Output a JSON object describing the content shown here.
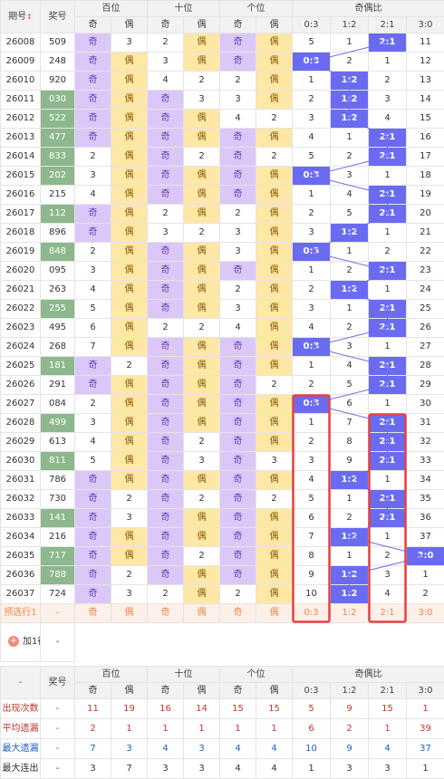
{
  "header": {
    "issue_col": "期号",
    "sort_mark": "↕",
    "prize_col": "奖号",
    "groups": [
      "百位",
      "十位",
      "个位",
      "奇偶比"
    ],
    "odd": "奇",
    "even": "偶",
    "ratios": [
      "0:3",
      "1:2",
      "2:1",
      "3:0"
    ]
  },
  "rows": [
    {
      "issue": "26008",
      "num": "509",
      "green": false,
      "h": [
        1,
        3
      ],
      "t": [
        2,
        1
      ],
      "u": [
        1,
        1
      ],
      "r": [
        5,
        1,
        "2:1",
        11
      ],
      "blue": 2
    },
    {
      "issue": "26009",
      "num": "248",
      "green": false,
      "h": [
        1,
        1
      ],
      "t": [
        3,
        1
      ],
      "u": [
        1,
        1
      ],
      "r": [
        "0:3",
        2,
        1,
        12
      ],
      "blue": 0
    },
    {
      "issue": "26010",
      "num": "920",
      "green": false,
      "h": [
        1,
        1
      ],
      "t": [
        4,
        2
      ],
      "u": [
        2,
        1
      ],
      "r": [
        1,
        "1:2",
        2,
        13
      ],
      "blue": 1
    },
    {
      "issue": "26011",
      "num": "030",
      "green": true,
      "h": [
        1,
        1
      ],
      "t": [
        1,
        3
      ],
      "u": [
        3,
        1
      ],
      "r": [
        2,
        "1:2",
        3,
        14
      ],
      "blue": 1
    },
    {
      "issue": "26012",
      "num": "522",
      "green": true,
      "h": [
        1,
        1
      ],
      "t": [
        1,
        1
      ],
      "u": [
        4,
        2
      ],
      "r": [
        3,
        "1:2",
        4,
        15
      ],
      "blue": 1
    },
    {
      "issue": "26013",
      "num": "477",
      "green": true,
      "h": [
        1,
        1
      ],
      "t": [
        1,
        1
      ],
      "u": [
        1,
        1
      ],
      "r": [
        4,
        1,
        "2:1",
        16
      ],
      "blue": 2
    },
    {
      "issue": "26014",
      "num": "833",
      "green": true,
      "h": [
        2,
        1
      ],
      "t": [
        1,
        2
      ],
      "u": [
        1,
        2
      ],
      "r": [
        5,
        2,
        "2:1",
        17
      ],
      "blue": 2
    },
    {
      "issue": "26015",
      "num": "202",
      "green": true,
      "h": [
        3,
        1
      ],
      "t": [
        1,
        1
      ],
      "u": [
        1,
        1
      ],
      "r": [
        "0:3",
        3,
        1,
        18
      ],
      "blue": 0
    },
    {
      "issue": "26016",
      "num": "215",
      "green": false,
      "h": [
        4,
        1
      ],
      "t": [
        1,
        1
      ],
      "u": [
        1,
        1
      ],
      "r": [
        1,
        4,
        "2:1",
        19
      ],
      "blue": 2
    },
    {
      "issue": "26017",
      "num": "112",
      "green": true,
      "h": [
        1,
        1
      ],
      "t": [
        2,
        1
      ],
      "u": [
        2,
        1
      ],
      "r": [
        2,
        5,
        "2:1",
        20
      ],
      "blue": 2
    },
    {
      "issue": "26018",
      "num": "896",
      "green": false,
      "h": [
        1,
        1
      ],
      "t": [
        3,
        2
      ],
      "u": [
        3,
        1
      ],
      "r": [
        3,
        "1:2",
        1,
        21
      ],
      "blue": 1
    },
    {
      "issue": "26019",
      "num": "848",
      "green": true,
      "h": [
        2,
        1
      ],
      "t": [
        1,
        1
      ],
      "u": [
        3,
        1
      ],
      "r": [
        "0:3",
        1,
        2,
        22
      ],
      "blue": 0
    },
    {
      "issue": "26020",
      "num": "095",
      "green": false,
      "h": [
        3,
        1
      ],
      "t": [
        1,
        1
      ],
      "u": [
        1,
        1
      ],
      "r": [
        1,
        2,
        "2:1",
        23
      ],
      "blue": 2
    },
    {
      "issue": "26021",
      "num": "263",
      "green": false,
      "h": [
        4,
        1
      ],
      "t": [
        1,
        1
      ],
      "u": [
        2,
        1
      ],
      "r": [
        2,
        "1:2",
        1,
        24
      ],
      "blue": 1
    },
    {
      "issue": "26022",
      "num": "255",
      "green": true,
      "h": [
        5,
        1
      ],
      "t": [
        1,
        1
      ],
      "u": [
        3,
        1
      ],
      "r": [
        3,
        1,
        "2:1",
        25
      ],
      "blue": 2
    },
    {
      "issue": "26023",
      "num": "495",
      "green": false,
      "h": [
        6,
        1
      ],
      "t": [
        2,
        2
      ],
      "u": [
        4,
        1
      ],
      "r": [
        4,
        2,
        "2:1",
        26
      ],
      "blue": 2
    },
    {
      "issue": "26024",
      "num": "268",
      "green": false,
      "h": [
        7,
        1
      ],
      "t": [
        1,
        1
      ],
      "u": [
        1,
        1
      ],
      "r": [
        "0:3",
        3,
        1,
        27
      ],
      "blue": 0
    },
    {
      "issue": "26025",
      "num": "181",
      "green": true,
      "h": [
        1,
        2
      ],
      "t": [
        1,
        1
      ],
      "u": [
        1,
        1
      ],
      "r": [
        1,
        4,
        "2:1",
        28
      ],
      "blue": 2
    },
    {
      "issue": "26026",
      "num": "291",
      "green": false,
      "h": [
        1,
        1
      ],
      "t": [
        1,
        1
      ],
      "u": [
        1,
        2
      ],
      "r": [
        2,
        5,
        "2:1",
        29
      ],
      "blue": 2
    },
    {
      "issue": "26027",
      "num": "084",
      "green": false,
      "h": [
        2,
        1
      ],
      "t": [
        1,
        1
      ],
      "u": [
        1,
        1
      ],
      "r": [
        "0:3",
        6,
        1,
        30
      ],
      "blue": 0
    },
    {
      "issue": "26028",
      "num": "499",
      "green": true,
      "h": [
        3,
        1
      ],
      "t": [
        1,
        1
      ],
      "u": [
        1,
        1
      ],
      "r": [
        1,
        7,
        "2:1",
        31
      ],
      "blue": 2
    },
    {
      "issue": "26029",
      "num": "613",
      "green": false,
      "h": [
        4,
        1
      ],
      "t": [
        1,
        2
      ],
      "u": [
        1,
        1
      ],
      "r": [
        2,
        8,
        "2:1",
        32
      ],
      "blue": 2
    },
    {
      "issue": "26030",
      "num": "811",
      "green": true,
      "h": [
        5,
        1
      ],
      "t": [
        1,
        3
      ],
      "u": [
        1,
        3
      ],
      "r": [
        3,
        9,
        "2:1",
        33
      ],
      "blue": 2
    },
    {
      "issue": "26031",
      "num": "786",
      "green": false,
      "h": [
        1,
        1
      ],
      "t": [
        1,
        1
      ],
      "u": [
        1,
        1
      ],
      "r": [
        4,
        "1:2",
        1,
        34
      ],
      "blue": 1
    },
    {
      "issue": "26032",
      "num": "730",
      "green": false,
      "h": [
        1,
        2
      ],
      "t": [
        1,
        2
      ],
      "u": [
        1,
        2
      ],
      "r": [
        5,
        1,
        "2:1",
        35
      ],
      "blue": 2
    },
    {
      "issue": "26033",
      "num": "141",
      "green": true,
      "h": [
        1,
        3
      ],
      "t": [
        1,
        1
      ],
      "u": [
        1,
        1
      ],
      "r": [
        6,
        2,
        "2:1",
        36
      ],
      "blue": 2
    },
    {
      "issue": "26034",
      "num": "216",
      "green": false,
      "h": [
        1,
        1
      ],
      "t": [
        1,
        1
      ],
      "u": [
        1,
        1
      ],
      "r": [
        7,
        "1:2",
        1,
        37
      ],
      "blue": 1
    },
    {
      "issue": "26035",
      "num": "717",
      "green": true,
      "h": [
        1,
        1
      ],
      "t": [
        1,
        2
      ],
      "u": [
        1,
        1
      ],
      "r": [
        8,
        1,
        2,
        "3:0"
      ],
      "blue": 3
    },
    {
      "issue": "26036",
      "num": "788",
      "green": true,
      "h": [
        1,
        2
      ],
      "t": [
        1,
        1
      ],
      "u": [
        1,
        1
      ],
      "r": [
        9,
        "1:2",
        3,
        1
      ],
      "blue": 1
    },
    {
      "issue": "26037",
      "num": "724",
      "green": false,
      "h": [
        1,
        3
      ],
      "t": [
        2,
        1
      ],
      "u": [
        2,
        1
      ],
      "r": [
        10,
        "1:2",
        4,
        2
      ],
      "blue": 1
    }
  ],
  "prediction": {
    "label": "预选行1",
    "dash": "-",
    "odd": "奇",
    "even": "偶",
    "ratios": [
      "0:3",
      "1:2",
      "2:1",
      "3:0"
    ]
  },
  "add_row": {
    "label": "加1行",
    "icon": "+",
    "dash": "-"
  },
  "stats_header": {
    "dash": "-",
    "prize_col": "奖号"
  },
  "stats": [
    {
      "label": "出现次数",
      "dash": "-",
      "values": [
        11,
        19,
        16,
        14,
        15,
        15,
        5,
        9,
        15,
        1
      ],
      "color": "st-r"
    },
    {
      "label": "平均遗漏",
      "dash": "-",
      "values": [
        2,
        1,
        1,
        1,
        1,
        1,
        6,
        2,
        1,
        39
      ],
      "color": "st-r"
    },
    {
      "label": "最大遗漏",
      "dash": "-",
      "values": [
        7,
        3,
        4,
        3,
        4,
        4,
        10,
        9,
        4,
        37
      ],
      "color": "st-b"
    },
    {
      "label": "最大连出",
      "dash": "-",
      "values": [
        3,
        7,
        3,
        3,
        4,
        4,
        1,
        3,
        3,
        1
      ],
      "color": "st-d"
    }
  ],
  "colors": {
    "odd_bg": "#dcc8f8",
    "even_bg": "#ffe7a6",
    "green": "#8db88d",
    "blue": "#6b6bf2",
    "highlight": "#e84040"
  }
}
